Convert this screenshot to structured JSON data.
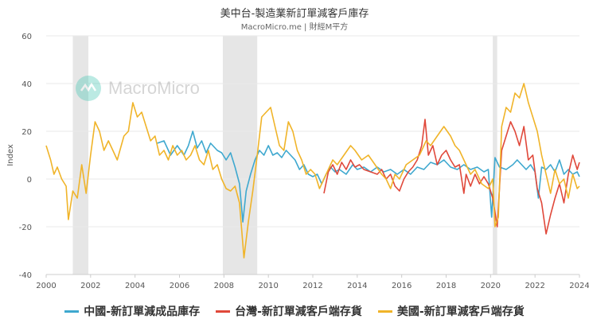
{
  "header": {
    "title": "美中台-製造業新訂單減客戶庫存",
    "subtitle": "MacroMicro.me | 財經M平方"
  },
  "watermark": {
    "text": "MacroMicro"
  },
  "colors": {
    "china": "#3ea8cf",
    "taiwan": "#e0483a",
    "usa": "#f0b429",
    "recession": "#e6e6e6",
    "grid": "#e9e9e9"
  },
  "chart_data": {
    "type": "line",
    "ylabel": "Index",
    "ylim": [
      -40,
      60
    ],
    "yticks": [
      -40,
      -20,
      0,
      20,
      40,
      60
    ],
    "xlim": [
      2000,
      2024
    ],
    "xticks": [
      "2000",
      "2002",
      "2004",
      "2006",
      "2008",
      "2010",
      "2012",
      "2014",
      "2016",
      "2018",
      "2020",
      "2022",
      "2024"
    ],
    "recessions": [
      [
        2001.2,
        2001.9
      ],
      [
        2007.95,
        2009.5
      ],
      [
        2020.1,
        2020.3
      ]
    ],
    "series": [
      {
        "name": "中國-新訂單減成品庫存",
        "color_key": "china",
        "points": [
          [
            2005.0,
            15
          ],
          [
            2005.3,
            16
          ],
          [
            2005.6,
            10
          ],
          [
            2005.9,
            14
          ],
          [
            2006.2,
            10
          ],
          [
            2006.4,
            14
          ],
          [
            2006.6,
            20
          ],
          [
            2006.8,
            13
          ],
          [
            2007.0,
            16
          ],
          [
            2007.2,
            11
          ],
          [
            2007.4,
            15
          ],
          [
            2007.7,
            12
          ],
          [
            2007.9,
            11
          ],
          [
            2008.1,
            8
          ],
          [
            2008.3,
            11
          ],
          [
            2008.5,
            5
          ],
          [
            2008.7,
            -2
          ],
          [
            2008.85,
            -18
          ],
          [
            2009.0,
            -5
          ],
          [
            2009.2,
            2
          ],
          [
            2009.4,
            8
          ],
          [
            2009.6,
            12
          ],
          [
            2009.8,
            10
          ],
          [
            2010.0,
            14
          ],
          [
            2010.2,
            10
          ],
          [
            2010.4,
            11
          ],
          [
            2010.6,
            9
          ],
          [
            2010.8,
            12
          ],
          [
            2011.0,
            10
          ],
          [
            2011.2,
            8
          ],
          [
            2011.4,
            4
          ],
          [
            2011.6,
            6
          ],
          [
            2011.8,
            2
          ],
          [
            2012.0,
            1
          ],
          [
            2012.2,
            2
          ],
          [
            2012.4,
            -2
          ],
          [
            2012.6,
            2
          ],
          [
            2012.8,
            5
          ],
          [
            2013.0,
            3
          ],
          [
            2013.2,
            4
          ],
          [
            2013.5,
            2
          ],
          [
            2013.8,
            6
          ],
          [
            2014.0,
            4
          ],
          [
            2014.3,
            5
          ],
          [
            2014.6,
            3
          ],
          [
            2014.9,
            5
          ],
          [
            2015.2,
            3
          ],
          [
            2015.5,
            4
          ],
          [
            2015.8,
            2
          ],
          [
            2016.1,
            4
          ],
          [
            2016.4,
            2
          ],
          [
            2016.7,
            5
          ],
          [
            2017.0,
            4
          ],
          [
            2017.3,
            7
          ],
          [
            2017.6,
            6
          ],
          [
            2017.9,
            8
          ],
          [
            2018.2,
            5
          ],
          [
            2018.5,
            4
          ],
          [
            2018.8,
            6
          ],
          [
            2019.1,
            4
          ],
          [
            2019.4,
            5
          ],
          [
            2019.7,
            3
          ],
          [
            2019.9,
            4
          ],
          [
            2020.05,
            -16
          ],
          [
            2020.2,
            9
          ],
          [
            2020.4,
            5
          ],
          [
            2020.7,
            4
          ],
          [
            2021.0,
            6
          ],
          [
            2021.2,
            8
          ],
          [
            2021.4,
            6
          ],
          [
            2021.6,
            4
          ],
          [
            2021.8,
            6
          ],
          [
            2022.0,
            3
          ],
          [
            2022.15,
            -8
          ],
          [
            2022.3,
            5
          ],
          [
            2022.5,
            4
          ],
          [
            2022.7,
            6
          ],
          [
            2022.9,
            3
          ],
          [
            2023.1,
            8
          ],
          [
            2023.3,
            2
          ],
          [
            2023.5,
            4
          ],
          [
            2023.7,
            2
          ],
          [
            2023.9,
            3
          ],
          [
            2024.0,
            1
          ]
        ]
      },
      {
        "name": "台灣-新訂單減客戶端存貨",
        "color_key": "taiwan",
        "points": [
          [
            2012.5,
            -6
          ],
          [
            2012.7,
            3
          ],
          [
            2012.9,
            6
          ],
          [
            2013.1,
            2
          ],
          [
            2013.3,
            7
          ],
          [
            2013.5,
            4
          ],
          [
            2013.7,
            8
          ],
          [
            2013.9,
            5
          ],
          [
            2014.1,
            6
          ],
          [
            2014.3,
            4
          ],
          [
            2014.6,
            3
          ],
          [
            2014.9,
            2
          ],
          [
            2015.1,
            4
          ],
          [
            2015.3,
            0
          ],
          [
            2015.5,
            2
          ],
          [
            2015.7,
            -3
          ],
          [
            2015.9,
            -5
          ],
          [
            2016.1,
            0
          ],
          [
            2016.3,
            3
          ],
          [
            2016.5,
            5
          ],
          [
            2016.7,
            8
          ],
          [
            2016.9,
            14
          ],
          [
            2017.05,
            25
          ],
          [
            2017.2,
            10
          ],
          [
            2017.4,
            14
          ],
          [
            2017.6,
            6
          ],
          [
            2017.8,
            10
          ],
          [
            2018.0,
            12
          ],
          [
            2018.2,
            8
          ],
          [
            2018.4,
            5
          ],
          [
            2018.6,
            6
          ],
          [
            2018.8,
            -6
          ],
          [
            2018.9,
            2
          ],
          [
            2019.1,
            -3
          ],
          [
            2019.3,
            2
          ],
          [
            2019.5,
            -2
          ],
          [
            2019.7,
            1
          ],
          [
            2019.9,
            -2
          ],
          [
            2020.1,
            -8
          ],
          [
            2020.3,
            -20
          ],
          [
            2020.5,
            12
          ],
          [
            2020.7,
            18
          ],
          [
            2020.9,
            24
          ],
          [
            2021.1,
            20
          ],
          [
            2021.3,
            14
          ],
          [
            2021.5,
            22
          ],
          [
            2021.7,
            8
          ],
          [
            2021.9,
            10
          ],
          [
            2022.1,
            -4
          ],
          [
            2022.3,
            -10
          ],
          [
            2022.5,
            -23
          ],
          [
            2022.7,
            -15
          ],
          [
            2022.9,
            -8
          ],
          [
            2023.1,
            -2
          ],
          [
            2023.3,
            -10
          ],
          [
            2023.5,
            2
          ],
          [
            2023.7,
            10
          ],
          [
            2023.9,
            4
          ],
          [
            2024.0,
            7
          ]
        ]
      },
      {
        "name": "美國-新訂單減客戶端存貨",
        "color_key": "usa",
        "points": [
          [
            2000.0,
            14
          ],
          [
            2000.2,
            8
          ],
          [
            2000.35,
            2
          ],
          [
            2000.5,
            5
          ],
          [
            2000.7,
            0
          ],
          [
            2000.9,
            -3
          ],
          [
            2001.0,
            -17
          ],
          [
            2001.2,
            -5
          ],
          [
            2001.4,
            -8
          ],
          [
            2001.6,
            6
          ],
          [
            2001.8,
            -6
          ],
          [
            2002.0,
            10
          ],
          [
            2002.2,
            24
          ],
          [
            2002.4,
            20
          ],
          [
            2002.6,
            12
          ],
          [
            2002.8,
            16
          ],
          [
            2003.0,
            12
          ],
          [
            2003.2,
            8
          ],
          [
            2003.5,
            18
          ],
          [
            2003.7,
            20
          ],
          [
            2003.9,
            32
          ],
          [
            2004.1,
            26
          ],
          [
            2004.3,
            28
          ],
          [
            2004.5,
            22
          ],
          [
            2004.7,
            16
          ],
          [
            2004.9,
            18
          ],
          [
            2005.1,
            10
          ],
          [
            2005.3,
            12
          ],
          [
            2005.5,
            8
          ],
          [
            2005.7,
            14
          ],
          [
            2005.9,
            10
          ],
          [
            2006.1,
            12
          ],
          [
            2006.3,
            8
          ],
          [
            2006.5,
            10
          ],
          [
            2006.7,
            14
          ],
          [
            2006.9,
            8
          ],
          [
            2007.1,
            6
          ],
          [
            2007.3,
            12
          ],
          [
            2007.5,
            4
          ],
          [
            2007.7,
            6
          ],
          [
            2007.9,
            0
          ],
          [
            2008.1,
            -4
          ],
          [
            2008.3,
            -5
          ],
          [
            2008.5,
            -3
          ],
          [
            2008.7,
            -10
          ],
          [
            2008.9,
            -33
          ],
          [
            2009.1,
            -18
          ],
          [
            2009.3,
            -5
          ],
          [
            2009.5,
            10
          ],
          [
            2009.7,
            26
          ],
          [
            2009.9,
            28
          ],
          [
            2010.1,
            30
          ],
          [
            2010.3,
            22
          ],
          [
            2010.5,
            14
          ],
          [
            2010.7,
            12
          ],
          [
            2010.9,
            24
          ],
          [
            2011.1,
            20
          ],
          [
            2011.3,
            12
          ],
          [
            2011.5,
            8
          ],
          [
            2011.7,
            2
          ],
          [
            2011.9,
            4
          ],
          [
            2012.1,
            2
          ],
          [
            2012.3,
            -4
          ],
          [
            2012.5,
            0
          ],
          [
            2012.7,
            4
          ],
          [
            2012.9,
            8
          ],
          [
            2013.1,
            6
          ],
          [
            2013.4,
            10
          ],
          [
            2013.7,
            14
          ],
          [
            2013.9,
            12
          ],
          [
            2014.2,
            8
          ],
          [
            2014.5,
            10
          ],
          [
            2014.8,
            6
          ],
          [
            2015.1,
            2
          ],
          [
            2015.3,
            0
          ],
          [
            2015.5,
            -4
          ],
          [
            2015.7,
            2
          ],
          [
            2015.9,
            0
          ],
          [
            2016.2,
            6
          ],
          [
            2016.5,
            8
          ],
          [
            2016.8,
            10
          ],
          [
            2017.1,
            16
          ],
          [
            2017.3,
            14
          ],
          [
            2017.6,
            18
          ],
          [
            2017.9,
            22
          ],
          [
            2018.2,
            18
          ],
          [
            2018.4,
            14
          ],
          [
            2018.6,
            12
          ],
          [
            2018.9,
            6
          ],
          [
            2019.1,
            2
          ],
          [
            2019.3,
            4
          ],
          [
            2019.6,
            -2
          ],
          [
            2019.9,
            -4
          ],
          [
            2020.1,
            0
          ],
          [
            2020.2,
            -20
          ],
          [
            2020.35,
            -16
          ],
          [
            2020.5,
            22
          ],
          [
            2020.7,
            30
          ],
          [
            2020.9,
            28
          ],
          [
            2021.1,
            36
          ],
          [
            2021.3,
            34
          ],
          [
            2021.5,
            40
          ],
          [
            2021.7,
            32
          ],
          [
            2021.9,
            26
          ],
          [
            2022.1,
            20
          ],
          [
            2022.3,
            10
          ],
          [
            2022.5,
            2
          ],
          [
            2022.7,
            -6
          ],
          [
            2022.9,
            4
          ],
          [
            2023.1,
            -2
          ],
          [
            2023.3,
            0
          ],
          [
            2023.5,
            -8
          ],
          [
            2023.7,
            2
          ],
          [
            2023.9,
            -4
          ],
          [
            2024.0,
            -3
          ]
        ]
      }
    ]
  }
}
